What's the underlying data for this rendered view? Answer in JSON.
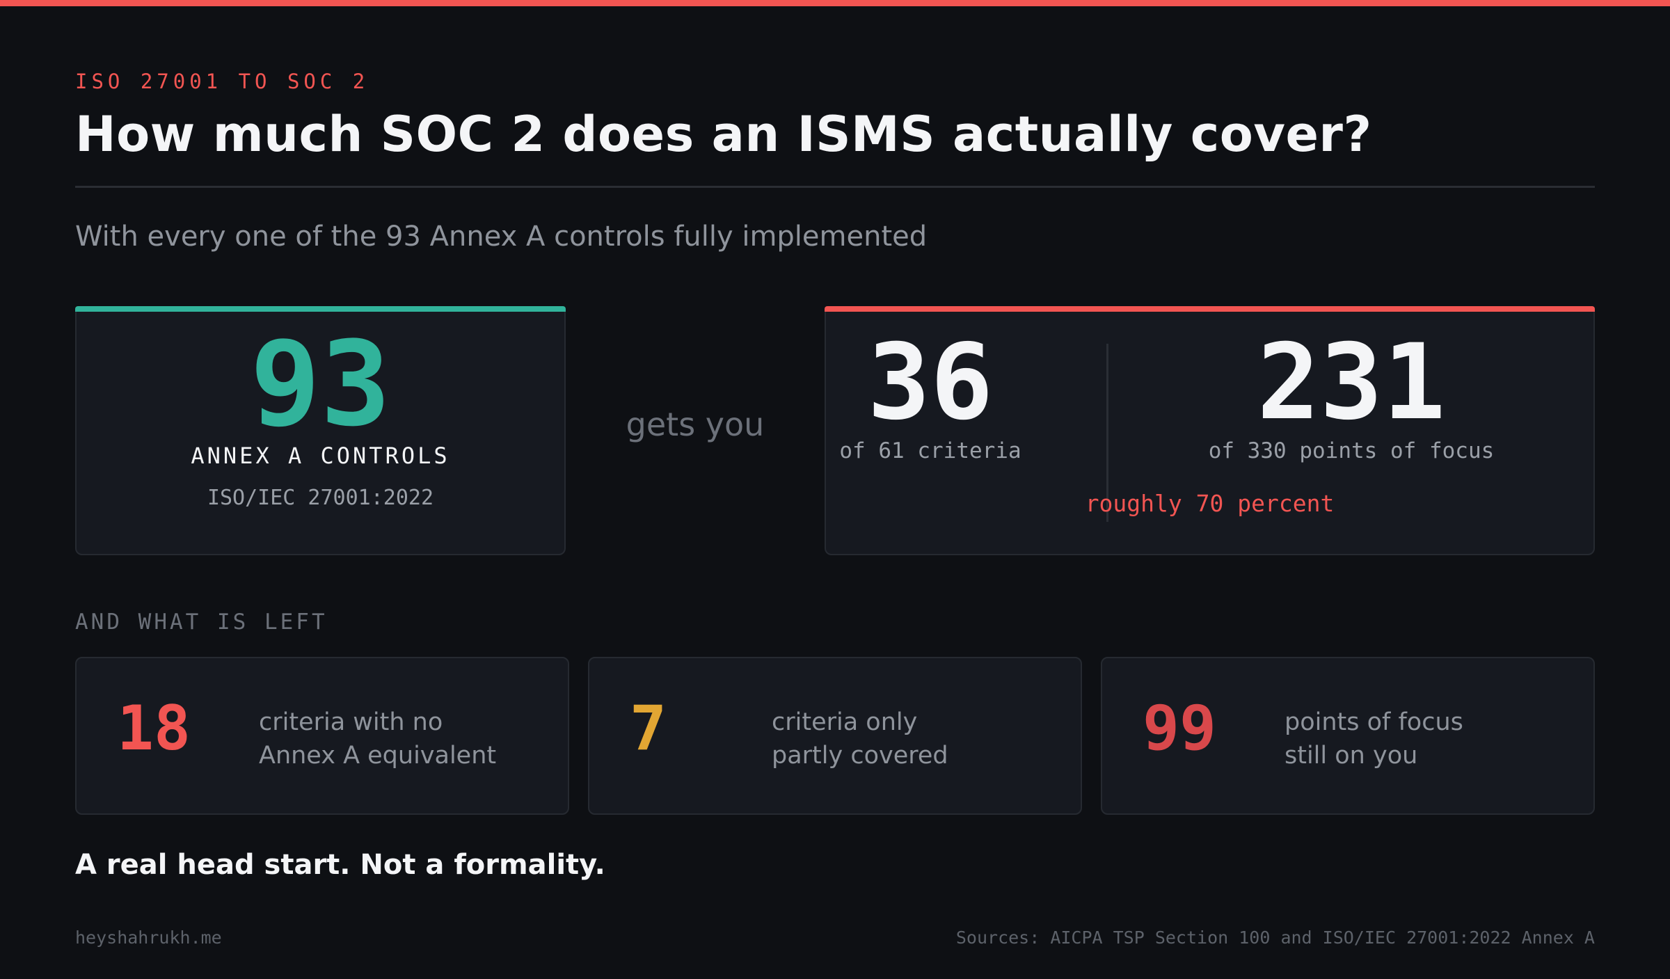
{
  "colors": {
    "accent_red": "#f25552",
    "accent_teal": "#31b39b",
    "accent_amber": "#e2a633",
    "accent_crimson": "#d9484b",
    "background": "#0e1014"
  },
  "header": {
    "eyebrow": "ISO 27001 TO SOC 2",
    "title": "How much SOC 2 does an ISMS actually cover?",
    "subtitle": "With every one of the 93 Annex A controls fully implemented"
  },
  "source_card": {
    "value": "93",
    "label": "ANNEX A CONTROLS",
    "standard": "ISO/IEC 27001:2022"
  },
  "connector": "gets you",
  "result_card": {
    "criteria_value": "36",
    "criteria_label": "of 61 criteria",
    "points_value": "231",
    "points_label": "of 330 points of focus",
    "summary": "roughly 70 percent"
  },
  "remaining": {
    "heading": "AND WHAT IS LEFT",
    "items": [
      {
        "value": "18",
        "line1": "criteria with no",
        "line2": "Annex A equivalent"
      },
      {
        "value": "7",
        "line1": "criteria only",
        "line2": "partly covered"
      },
      {
        "value": "99",
        "line1": "points of focus",
        "line2": "still on you"
      }
    ]
  },
  "tagline": "A real head start. Not a formality.",
  "footer": {
    "site": "heyshahrukh.me",
    "sources": "Sources: AICPA TSP Section 100 and ISO/IEC 27001:2022 Annex A"
  }
}
